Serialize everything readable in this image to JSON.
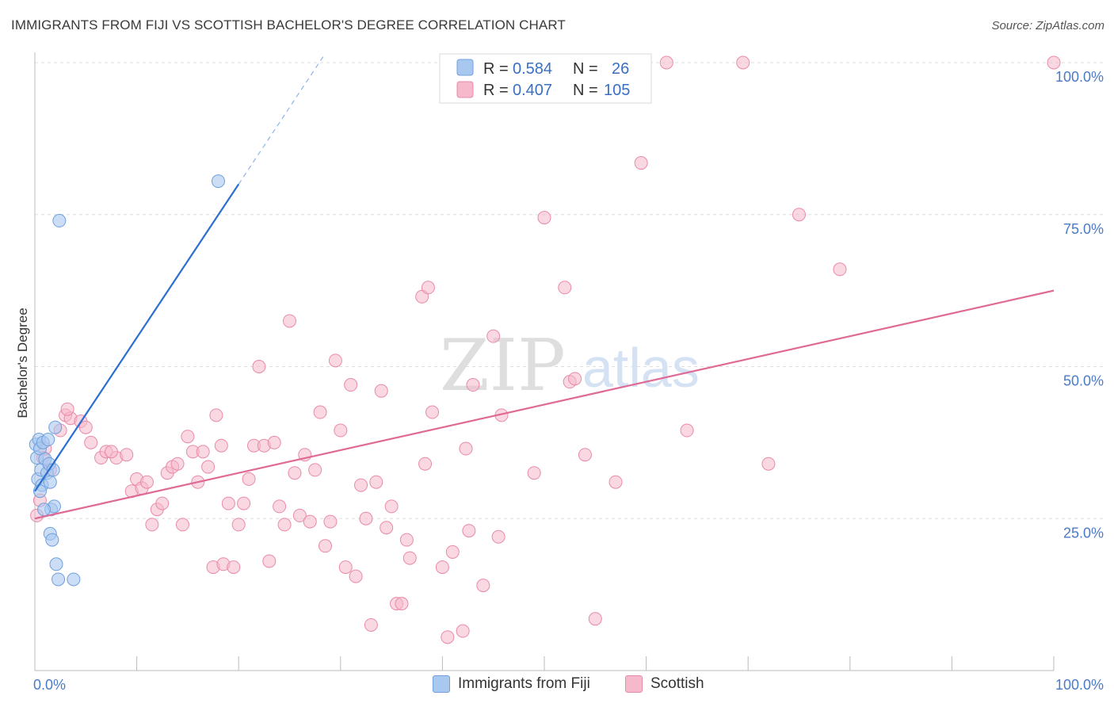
{
  "title": "IMMIGRANTS FROM FIJI VS SCOTTISH BACHELOR'S DEGREE CORRELATION CHART",
  "source": "Source: ZipAtlas.com",
  "watermark": {
    "zip": "ZIP",
    "atlas": "atlas"
  },
  "legend": {
    "rows": [
      {
        "r_label": "R = ",
        "r_value": "0.584",
        "n_label": "N = ",
        "n_value": "26"
      },
      {
        "r_label": "R = ",
        "r_value": "0.407",
        "n_label": "N = ",
        "n_value": "105"
      }
    ]
  },
  "bottom_legend": [
    "Immigrants from Fiji",
    "Scottish"
  ],
  "colors": {
    "fiji_fill": "#a9c8f0",
    "fiji_stroke": "#6f9fdc",
    "fiji_line": "#2b6fce",
    "scottish_fill": "#f6b8cb",
    "scottish_stroke": "#e98aa8",
    "scottish_line": "#e06a96",
    "tick_label": "#4a7bc8",
    "grid": "#dddddd"
  },
  "chart_data": {
    "type": "scatter",
    "ylabel": "Bachelor's Degree",
    "xlabel": "",
    "x_tick_labels": [
      "0.0%",
      "100.0%"
    ],
    "y_tick_labels": [
      "25.0%",
      "50.0%",
      "75.0%",
      "100.0%"
    ],
    "xlim": [
      0,
      100
    ],
    "ylim": [
      0,
      100
    ],
    "grid": true,
    "legend_position": "top-center",
    "series": [
      {
        "name": "Immigrants from Fiji",
        "r": 0.584,
        "n": 26,
        "points": [
          [
            0.1,
            37.2
          ],
          [
            0.2,
            35.0
          ],
          [
            0.3,
            31.5
          ],
          [
            0.4,
            38.0
          ],
          [
            0.5,
            36.5
          ],
          [
            0.6,
            33.0
          ],
          [
            0.7,
            30.5
          ],
          [
            0.8,
            37.5
          ],
          [
            1.0,
            34.8
          ],
          [
            1.2,
            32.5
          ],
          [
            1.3,
            38.0
          ],
          [
            1.4,
            34.0
          ],
          [
            1.5,
            31.0
          ],
          [
            1.6,
            26.5
          ],
          [
            1.5,
            22.5
          ],
          [
            1.7,
            21.5
          ],
          [
            1.8,
            33.0
          ],
          [
            1.9,
            27.0
          ],
          [
            2.0,
            40.0
          ],
          [
            2.1,
            17.5
          ],
          [
            2.3,
            15.0
          ],
          [
            0.5,
            29.5
          ],
          [
            3.8,
            15.0
          ],
          [
            2.4,
            74.0
          ],
          [
            18.0,
            80.5
          ],
          [
            0.9,
            26.5
          ]
        ],
        "trend": {
          "x0": 0,
          "y0": 29.5,
          "x1": 20,
          "y1": 80.0,
          "dash_to_x": 28.5,
          "dash_to_y": 101.5
        }
      },
      {
        "name": "Scottish",
        "r": 0.407,
        "n": 105,
        "points": [
          [
            0.2,
            25.5
          ],
          [
            0.8,
            35.0
          ],
          [
            1.5,
            33.0
          ],
          [
            2.5,
            39.5
          ],
          [
            3.0,
            42.0
          ],
          [
            3.5,
            41.5
          ],
          [
            4.5,
            41.0
          ],
          [
            5.5,
            37.5
          ],
          [
            6.5,
            35.0
          ],
          [
            7.0,
            36.0
          ],
          [
            8.0,
            35.0
          ],
          [
            9.0,
            35.5
          ],
          [
            9.5,
            29.5
          ],
          [
            10.0,
            31.5
          ],
          [
            10.5,
            30.0
          ],
          [
            11.0,
            31.0
          ],
          [
            11.5,
            24.0
          ],
          [
            12.0,
            26.5
          ],
          [
            12.5,
            27.5
          ],
          [
            13.0,
            32.5
          ],
          [
            13.5,
            33.5
          ],
          [
            14.0,
            34.0
          ],
          [
            14.5,
            24.0
          ],
          [
            15.0,
            38.5
          ],
          [
            15.5,
            36.0
          ],
          [
            16.0,
            31.0
          ],
          [
            16.5,
            36.0
          ],
          [
            17.0,
            33.5
          ],
          [
            17.5,
            17.0
          ],
          [
            17.8,
            42.0
          ],
          [
            18.5,
            17.5
          ],
          [
            19.0,
            27.5
          ],
          [
            19.5,
            17.0
          ],
          [
            20.0,
            24.0
          ],
          [
            20.5,
            27.5
          ],
          [
            21.0,
            31.5
          ],
          [
            21.5,
            37.0
          ],
          [
            22.0,
            50.0
          ],
          [
            22.5,
            37.0
          ],
          [
            23.0,
            18.0
          ],
          [
            23.5,
            37.5
          ],
          [
            24.0,
            27.0
          ],
          [
            24.5,
            24.0
          ],
          [
            25.0,
            57.5
          ],
          [
            25.5,
            32.5
          ],
          [
            26.0,
            25.5
          ],
          [
            26.5,
            35.5
          ],
          [
            27.0,
            24.5
          ],
          [
            27.5,
            33.0
          ],
          [
            28.0,
            42.5
          ],
          [
            28.5,
            20.5
          ],
          [
            29.0,
            24.5
          ],
          [
            29.5,
            51.0
          ],
          [
            30.0,
            39.5
          ],
          [
            30.5,
            17.0
          ],
          [
            31.0,
            47.0
          ],
          [
            31.5,
            15.5
          ],
          [
            32.0,
            30.5
          ],
          [
            32.5,
            25.0
          ],
          [
            33.0,
            7.5
          ],
          [
            33.5,
            31.0
          ],
          [
            34.0,
            46.0
          ],
          [
            34.5,
            23.5
          ],
          [
            35.0,
            27.0
          ],
          [
            35.5,
            11.0
          ],
          [
            36.0,
            11.0
          ],
          [
            36.5,
            21.5
          ],
          [
            36.8,
            18.5
          ],
          [
            38.0,
            61.5
          ],
          [
            38.3,
            34.0
          ],
          [
            38.6,
            63.0
          ],
          [
            39.0,
            42.5
          ],
          [
            40.0,
            17.0
          ],
          [
            40.5,
            5.5
          ],
          [
            41.0,
            19.5
          ],
          [
            42.0,
            6.5
          ],
          [
            42.3,
            36.5
          ],
          [
            42.6,
            23.0
          ],
          [
            43.0,
            47.0
          ],
          [
            44.0,
            14.0
          ],
          [
            45.0,
            55.0
          ],
          [
            45.5,
            22.0
          ],
          [
            45.8,
            42.0
          ],
          [
            49.0,
            32.5
          ],
          [
            50.0,
            74.5
          ],
          [
            52.0,
            63.0
          ],
          [
            52.5,
            47.5
          ],
          [
            53.0,
            48.0
          ],
          [
            54.0,
            35.5
          ],
          [
            55.0,
            8.5
          ],
          [
            57.0,
            31.0
          ],
          [
            59.5,
            83.5
          ],
          [
            62.0,
            100.0
          ],
          [
            64.0,
            39.5
          ],
          [
            69.5,
            100.0
          ],
          [
            72.0,
            34.0
          ],
          [
            75.0,
            75.0
          ],
          [
            79.0,
            66.0
          ],
          [
            100.0,
            100.0
          ],
          [
            0.5,
            28.0
          ],
          [
            1.0,
            36.5
          ],
          [
            3.2,
            43.0
          ],
          [
            5.0,
            40.0
          ],
          [
            7.5,
            36.0
          ],
          [
            18.3,
            37.0
          ]
        ],
        "trend": {
          "x0": 0,
          "y0": 25.0,
          "x1": 100,
          "y1": 62.5
        }
      }
    ]
  }
}
